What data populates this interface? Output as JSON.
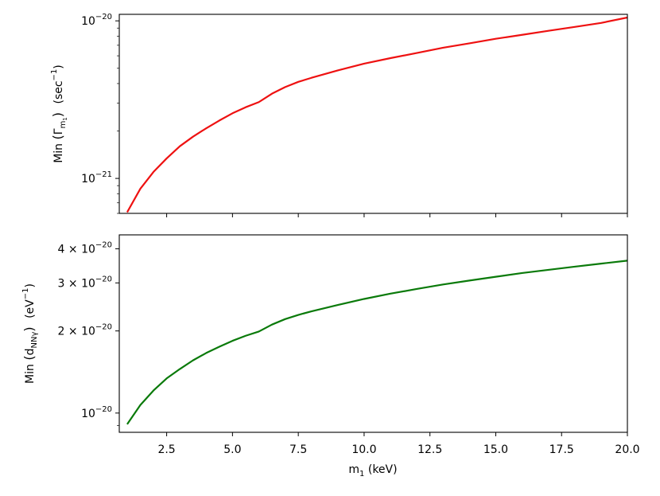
{
  "chart_data": [
    {
      "type": "line",
      "panel": "top",
      "ylabel": {
        "prefix": "Min",
        "symbol": "Γ",
        "subscript": "m",
        "subsubscript": "1",
        "unit_base": "(sec",
        "unit_exp": "−1",
        "unit_close": ")"
      },
      "yscale": "log",
      "ylim": [
        6e-22,
        1.1e-20
      ],
      "xlim": [
        0.7,
        20
      ],
      "yticks": [
        {
          "base": "10",
          "exp": "−20",
          "value": 1e-20
        },
        {
          "base": "10",
          "exp": "−21",
          "value": 1e-21
        }
      ],
      "color": "#ee1111",
      "series": [
        {
          "x": [
            1.0,
            1.5,
            2.0,
            2.5,
            3.0,
            3.5,
            4.0,
            4.5,
            5.0,
            5.5,
            6.0,
            6.5,
            7.0,
            7.5,
            8.0,
            9.0,
            10.0,
            11.0,
            12.0,
            13.0,
            14.0,
            15.0,
            16.0,
            17.0,
            18.0,
            19.0,
            20.0
          ],
          "y": [
            6.1e-22,
            8.6e-22,
            1.1e-21,
            1.34e-21,
            1.6e-21,
            1.84e-21,
            2.08e-21,
            2.33e-21,
            2.59e-21,
            2.83e-21,
            3.05e-21,
            3.45e-21,
            3.8e-21,
            4.1e-21,
            4.35e-21,
            4.85e-21,
            5.35e-21,
            5.8e-21,
            6.25e-21,
            6.75e-21,
            7.2e-21,
            7.7e-21,
            8.15e-21,
            8.65e-21,
            9.15e-21,
            9.7e-21,
            1.05e-20
          ]
        }
      ]
    },
    {
      "type": "line",
      "panel": "bottom",
      "ylabel": {
        "prefix": "Min",
        "symbol": "d",
        "subscript": "NNγ",
        "unit_base": "(eV",
        "unit_exp": "−1",
        "unit_close": ")"
      },
      "yscale": "log",
      "ylim": [
        8.5e-21,
        4.5e-20
      ],
      "xlim": [
        0.7,
        20
      ],
      "xlabel": {
        "base": "m",
        "sub": "1",
        "rest": " (keV)"
      },
      "xticks": [
        "2.5",
        "5.0",
        "7.5",
        "10.0",
        "12.5",
        "15.0",
        "17.5",
        "20.0"
      ],
      "yticks": [
        {
          "mant": "4 × ",
          "base": "10",
          "exp": "−20",
          "value": 4e-20
        },
        {
          "mant": "3 × ",
          "base": "10",
          "exp": "−20",
          "value": 3e-20
        },
        {
          "mant": "2 × ",
          "base": "10",
          "exp": "−20",
          "value": 2e-20
        },
        {
          "mant": "",
          "base": "10",
          "exp": "−20",
          "value": 1e-20
        }
      ],
      "color": "#0a7a0a",
      "series": [
        {
          "x": [
            1.0,
            1.5,
            2.0,
            2.5,
            3.0,
            3.5,
            4.0,
            4.5,
            5.0,
            5.5,
            6.0,
            6.5,
            7.0,
            7.5,
            8.0,
            9.0,
            10.0,
            11.0,
            12.0,
            13.0,
            14.0,
            15.0,
            16.0,
            17.0,
            18.0,
            19.0,
            20.0
          ],
          "y": [
            9.1e-21,
            1.07e-20,
            1.21e-20,
            1.34e-20,
            1.45e-20,
            1.56e-20,
            1.66e-20,
            1.75e-20,
            1.84e-20,
            1.92e-20,
            1.99e-20,
            2.11e-20,
            2.21e-20,
            2.29e-20,
            2.36e-20,
            2.49e-20,
            2.62e-20,
            2.74e-20,
            2.85e-20,
            2.96e-20,
            3.06e-20,
            3.16e-20,
            3.26e-20,
            3.35e-20,
            3.44e-20,
            3.53e-20,
            3.62e-20
          ]
        }
      ]
    }
  ]
}
